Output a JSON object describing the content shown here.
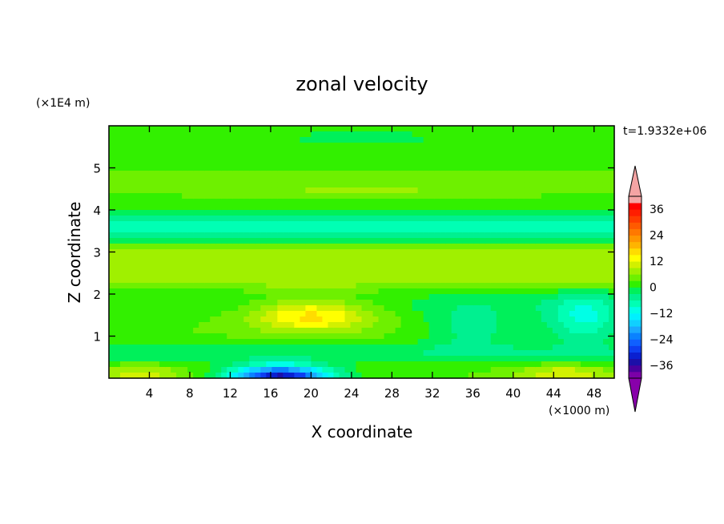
{
  "chart_data": {
    "type": "heatmap",
    "title": "zonal velocity",
    "xlabel": "X coordinate",
    "ylabel": "Z coordinate",
    "x_unit": "(×1000 m)",
    "y_unit": "(×1E4 m)",
    "time_label": "t=1.9332e+06",
    "xlim": [
      0,
      50
    ],
    "ylim": [
      0,
      6
    ],
    "x_ticks": [
      4,
      8,
      12,
      16,
      20,
      24,
      28,
      32,
      36,
      40,
      44,
      48
    ],
    "x_tick_labels": [
      "4",
      "8",
      "12",
      "16",
      "20",
      "24",
      "28",
      "32",
      "36",
      "40",
      "44",
      "48"
    ],
    "y_ticks": [
      1,
      2,
      3,
      4,
      5
    ],
    "y_tick_labels": [
      "1",
      "2",
      "3",
      "4",
      "5"
    ],
    "colorbar": {
      "levels": [
        -42,
        -39,
        -36,
        -33,
        -30,
        -27,
        -24,
        -21,
        -18,
        -15,
        -12,
        -9,
        -6,
        -3,
        0,
        3,
        6,
        9,
        12,
        15,
        18,
        21,
        24,
        27,
        30,
        33,
        36,
        39,
        42
      ],
      "colors": [
        "#7b00a8",
        "#4a009e",
        "#1c0fa8",
        "#0a20d0",
        "#0e3ef0",
        "#1060ff",
        "#0a82ff",
        "#1aa8ff",
        "#10d0ff",
        "#00f0ff",
        "#00ffe6",
        "#00ffb4",
        "#00f090",
        "#00f05a",
        "#32f000",
        "#6ef000",
        "#a0f000",
        "#d2f000",
        "#ffff00",
        "#ffdc00",
        "#ffb400",
        "#ff9600",
        "#ff7800",
        "#ff5a00",
        "#ff3c00",
        "#ff1e00",
        "#ff0000",
        "#f4a4a4"
      ],
      "under_color": "#8800aa",
      "over_color": "#f4a4a4",
      "tick_values": [
        36,
        24,
        12,
        0,
        -12,
        -24,
        -36
      ],
      "tick_labels": [
        "36",
        "24",
        "12",
        "0",
        "−12",
        "−24",
        "−36"
      ]
    },
    "field": {
      "background": 3,
      "features": [
        {
          "x": 17,
          "z": 0.0,
          "sx": 5,
          "sz": 0.3,
          "a": -38
        },
        {
          "x": 20,
          "z": 1.5,
          "sx": 6,
          "sz": 0.4,
          "a": 14
        },
        {
          "x": 36,
          "z": 1.2,
          "sx": 5,
          "sz": 0.6,
          "a": -7
        },
        {
          "x": 47,
          "z": 1.4,
          "sx": 4,
          "sz": 0.6,
          "a": -12
        },
        {
          "x": 45,
          "z": 0.1,
          "sx": 5,
          "sz": 0.2,
          "a": 9
        },
        {
          "x": 3,
          "z": 0.1,
          "sx": 4,
          "sz": 0.2,
          "a": 8
        },
        {
          "x": 25,
          "z": 5.7,
          "sx": 12,
          "sz": 0.3,
          "a": -4
        },
        {
          "x": 25,
          "z": 4.5,
          "sx": 12,
          "sz": 0.15,
          "a": 4
        }
      ],
      "bands": [
        {
          "z": 3.6,
          "w": 0.35,
          "a": -11
        },
        {
          "z": 2.8,
          "w": 0.35,
          "a": 6
        },
        {
          "z": 2.3,
          "w": 0.2,
          "a": 4
        },
        {
          "z": 1.8,
          "w": 0.35,
          "a": -3
        },
        {
          "z": 0.6,
          "w": 0.25,
          "a": -5
        }
      ]
    }
  }
}
